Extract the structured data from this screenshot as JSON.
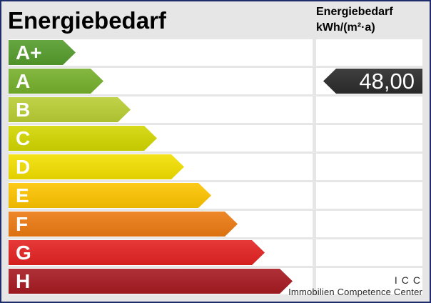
{
  "title": "Energiebedarf",
  "unit_header": {
    "label": "Energiebedarf",
    "unit": "kWh/(m²·a)"
  },
  "classes": [
    {
      "label": "A+",
      "color": "#559c2c"
    },
    {
      "label": "A",
      "color": "#76b02c",
      "value": "48,00"
    },
    {
      "label": "B",
      "color": "#b9ce34"
    },
    {
      "label": "C",
      "color": "#d2d600"
    },
    {
      "label": "D",
      "color": "#f2df00"
    },
    {
      "label": "E",
      "color": "#fdc400"
    },
    {
      "label": "F",
      "color": "#ec7a12"
    },
    {
      "label": "G",
      "color": "#e32322"
    },
    {
      "label": "H",
      "color": "#a61a21"
    }
  ],
  "indicator_color": "#2f2f2f",
  "logo": {
    "abbr": "ICC",
    "name": "Immobilien Competence Center"
  },
  "colors": {
    "background": "#e6e6e6",
    "border": "#1f2d6d",
    "cell": "#ffffff"
  }
}
